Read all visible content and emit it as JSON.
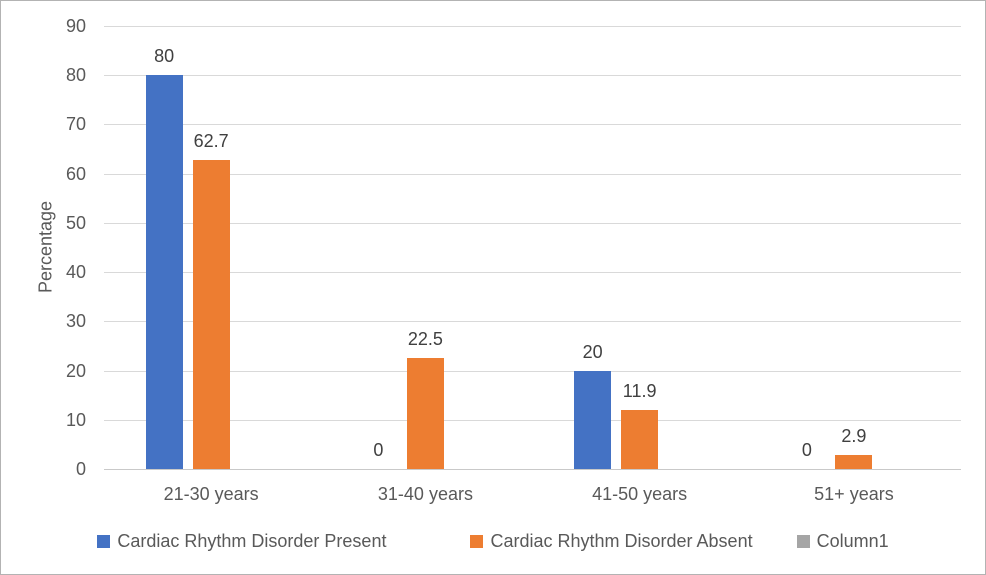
{
  "chart_data": {
    "type": "bar",
    "title": "",
    "xlabel": "",
    "ylabel": "Percentage",
    "categories": [
      "21-30 years",
      "31-40 years",
      "41-50 years",
      "51+ years"
    ],
    "series": [
      {
        "name": "Cardiac Rhythm Disorder Present",
        "color": "#4472C4",
        "values": [
          80,
          0,
          20,
          0
        ],
        "data_labels": [
          "80",
          "0",
          "20",
          "0"
        ]
      },
      {
        "name": "Cardiac Rhythm Disorder Absent",
        "color": "#ED7D31",
        "values": [
          62.7,
          22.5,
          11.9,
          2.9
        ],
        "data_labels": [
          "62.7",
          "22.5",
          "11.9",
          "2.9"
        ]
      },
      {
        "name": "Column1",
        "color": "#A5A5A5",
        "values": [
          0,
          0,
          0,
          0
        ],
        "data_labels": [
          "",
          "",
          "",
          ""
        ]
      }
    ],
    "y_axis": {
      "min": 0,
      "max": 90,
      "step": 10,
      "tick_labels": [
        "0",
        "10",
        "20",
        "30",
        "40",
        "50",
        "60",
        "70",
        "80",
        "90"
      ]
    },
    "grid": true,
    "legend_position": "bottom",
    "style": {
      "gridline_color": "#d9d9d9",
      "axis_text_color": "#595959",
      "data_label_color": "#404040",
      "frame_border_color": "#b3b3b3",
      "background_color": "#ffffff"
    }
  }
}
